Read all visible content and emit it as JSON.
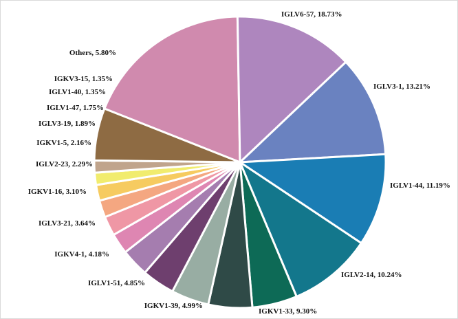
{
  "chart_data": {
    "type": "pie",
    "title": "",
    "slices": [
      {
        "label": "IGLV6-57, 18.73%",
        "name": "IGLV6-57",
        "value": 18.73,
        "color": "#D08AAE"
      },
      {
        "label": "IGLV3-1, 13.21%",
        "name": "IGLV3-1",
        "value": 13.21,
        "color": "#AE86BE"
      },
      {
        "label": "IGLV1-44, 11.19%",
        "name": "IGLV1-44",
        "value": 11.19,
        "color": "#6A82C0"
      },
      {
        "label": "IGLV2-14, 10.24%",
        "name": "IGLV2-14",
        "value": 10.24,
        "color": "#1A7DB4"
      },
      {
        "label": "IGKV1-33, 9.30%",
        "name": "IGKV1-33",
        "value": 9.3,
        "color": "#13778C"
      },
      {
        "label": "IGKV1-39, 4.99%",
        "name": "IGKV1-39",
        "value": 4.99,
        "color": "#0D6A56"
      },
      {
        "label": "IGLV1-51, 4.85%",
        "name": "IGLV1-51",
        "value": 4.85,
        "color": "#2F4A47"
      },
      {
        "label": "IGKV4-1, 4.18%",
        "name": "IGKV4-1",
        "value": 4.18,
        "color": "#98ADA3"
      },
      {
        "label": "IGLV3-21, 3.64%",
        "name": "IGLV3-21",
        "value": 3.64,
        "color": "#6E3F6E"
      },
      {
        "label": "IGKV1-16, 3.10%",
        "name": "IGKV1-16",
        "value": 3.1,
        "color": "#A57DAF"
      },
      {
        "label": "IGLV2-23, 2.29%",
        "name": "IGLV2-23",
        "value": 2.29,
        "color": "#DE86B2"
      },
      {
        "label": "IGKV1-5, 2.16%",
        "name": "IGKV1-5",
        "value": 2.16,
        "color": "#EF97A5"
      },
      {
        "label": "IGLV3-19, 1.89%",
        "name": "IGLV3-19",
        "value": 1.89,
        "color": "#F4A781"
      },
      {
        "label": "IGLV1-47, 1.75%",
        "name": "IGLV1-47",
        "value": 1.75,
        "color": "#F6CB60"
      },
      {
        "label": "IGLV1-40, 1.35%",
        "name": "IGLV1-40",
        "value": 1.35,
        "color": "#F1EC6E"
      },
      {
        "label": "IGKV3-15, 1.35%",
        "name": "IGKV3-15",
        "value": 1.35,
        "color": "#C0A48C"
      },
      {
        "label": "Others, 5.80%",
        "name": "Others",
        "value": 5.8,
        "color": "#8E6B43"
      }
    ],
    "start_direction": "top",
    "direction": "clockwise",
    "legend": "none",
    "data_labels": "outside"
  }
}
